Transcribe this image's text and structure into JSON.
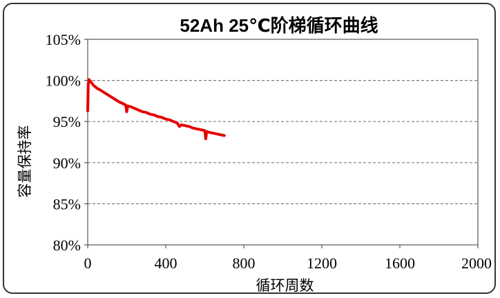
{
  "chart_data": {
    "type": "line",
    "title": "52Ah 25℃阶梯循环曲线",
    "xlabel": "循环周数",
    "ylabel": "容量保持率",
    "xlim": [
      0,
      2000
    ],
    "ylim": [
      80,
      105
    ],
    "xticks": [
      0,
      400,
      800,
      1200,
      1600,
      2000
    ],
    "yticks": [
      80,
      85,
      90,
      95,
      100,
      105
    ],
    "xtick_labels": [
      "0",
      "400",
      "800",
      "1200",
      "1600",
      "2000"
    ],
    "ytick_labels": [
      "80%",
      "85%",
      "90%",
      "95%",
      "100%",
      "105%"
    ],
    "grid": "horizontal-dashed",
    "series_color": "#e60000",
    "series": [
      {
        "name": "",
        "x": [
          0,
          3,
          6,
          10,
          15,
          20,
          30,
          40,
          50,
          60,
          80,
          100,
          120,
          140,
          160,
          180,
          195,
          200,
          205,
          220,
          240,
          260,
          280,
          300,
          320,
          340,
          360,
          380,
          400,
          420,
          440,
          460,
          470,
          480,
          500,
          520,
          540,
          560,
          580,
          600,
          605,
          610,
          620,
          640,
          660,
          680,
          700
        ],
        "y": [
          96.3,
          99.5,
          100.1,
          100.0,
          99.9,
          99.7,
          99.4,
          99.2,
          99.0,
          98.9,
          98.6,
          98.3,
          98.0,
          97.7,
          97.4,
          97.2,
          97.0,
          96.2,
          96.9,
          96.8,
          96.6,
          96.4,
          96.2,
          96.1,
          95.9,
          95.8,
          95.6,
          95.5,
          95.3,
          95.2,
          95.0,
          94.8,
          94.4,
          94.6,
          94.5,
          94.4,
          94.2,
          94.1,
          94.0,
          93.9,
          92.9,
          93.8,
          93.7,
          93.6,
          93.5,
          93.4,
          93.3
        ]
      }
    ]
  }
}
